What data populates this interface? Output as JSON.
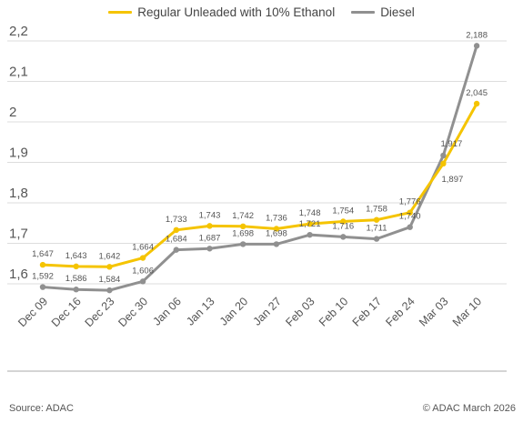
{
  "chart_data": {
    "type": "line",
    "categories": [
      "Dec 09",
      "Dec 16",
      "Dec 23",
      "Dec 30",
      "Jan 06",
      "Jan 13",
      "Jan 20",
      "Jan 27",
      "Feb 03",
      "Feb 10",
      "Feb 17",
      "Feb 24",
      "Mar 03",
      "Mar 10"
    ],
    "series": [
      {
        "name": "Regular Unleaded with 10% Ethanol",
        "color": "#f5c400",
        "values": [
          1.647,
          1.643,
          1.642,
          1.664,
          1.733,
          1.743,
          1.742,
          1.736,
          1.748,
          1.754,
          1.758,
          1.776,
          1.897,
          2.045
        ],
        "labels": [
          "1,647",
          "1,643",
          "1,642",
          "1,664",
          "1,733",
          "1,743",
          "1,742",
          "1,736",
          "1,748",
          "1,754",
          "1,758",
          "1,776",
          "1,897",
          "2,045"
        ]
      },
      {
        "name": "Diesel",
        "color": "#909090",
        "values": [
          1.592,
          1.586,
          1.584,
          1.606,
          1.684,
          1.687,
          1.698,
          1.698,
          1.721,
          1.716,
          1.711,
          1.74,
          1.917,
          2.188
        ],
        "labels": [
          "1,592",
          "1,586",
          "1,584",
          "1,606",
          "1,684",
          "1,687",
          "1,698",
          "1,698",
          "1,721",
          "1,716",
          "1,711",
          "1,740",
          "1,917",
          "2,188"
        ]
      }
    ],
    "yticks": [
      1.6,
      1.7,
      1.8,
      1.9,
      2.0,
      2.1,
      2.2
    ],
    "ytick_labels": [
      "1,6",
      "1,7",
      "1,8",
      "1,9",
      "2",
      "2,1",
      "2,2"
    ],
    "ylim": [
      1.55,
      2.23
    ],
    "grid": true,
    "legend_position": "top-center"
  },
  "footer": {
    "source": "Source: ADAC",
    "copyright": "© ADAC March 2026"
  }
}
